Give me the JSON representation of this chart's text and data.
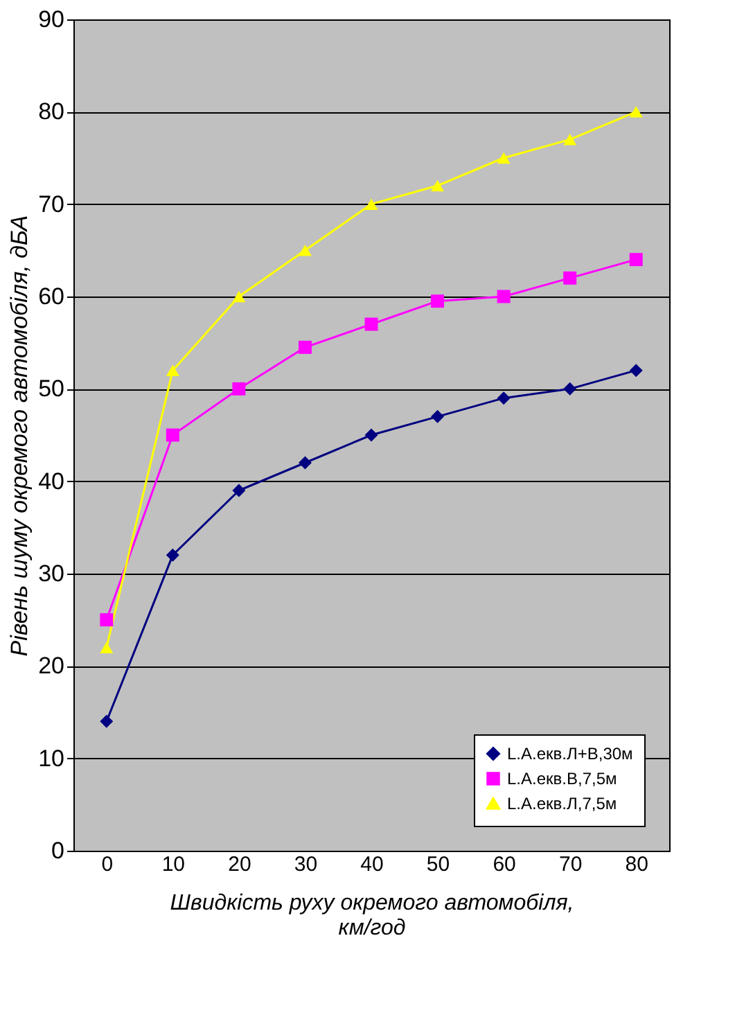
{
  "chart_data": {
    "type": "line",
    "xlabel": "Швидкість руху окремого автомобіля, км/год",
    "ylabel": "Рівень шуму окремого автомобіля, дБА",
    "categories": [
      "0",
      "10",
      "20",
      "30",
      "40",
      "50",
      "60",
      "70",
      "80"
    ],
    "series": [
      {
        "name": "L.А.екв.Л+В,30м",
        "color": "#000080",
        "marker": "diamond",
        "values": [
          14,
          32,
          39,
          42,
          45,
          47,
          49,
          50,
          52
        ]
      },
      {
        "name": "L.А.екв.В,7,5м",
        "color": "#ff00ff",
        "marker": "square",
        "values": [
          25,
          45,
          50,
          54.5,
          57,
          59.5,
          60,
          62,
          64
        ]
      },
      {
        "name": "L.А.екв.Л,7,5м",
        "color": "#ffff00",
        "marker": "triangle",
        "values": [
          22,
          52,
          60,
          65,
          70,
          72,
          75,
          77,
          80
        ]
      }
    ],
    "ylim": [
      0,
      90
    ],
    "yticks": [
      0,
      10,
      20,
      30,
      40,
      50,
      60,
      70,
      80,
      90
    ],
    "grid": "y",
    "legend": "bottom right",
    "line_style": "solid"
  }
}
